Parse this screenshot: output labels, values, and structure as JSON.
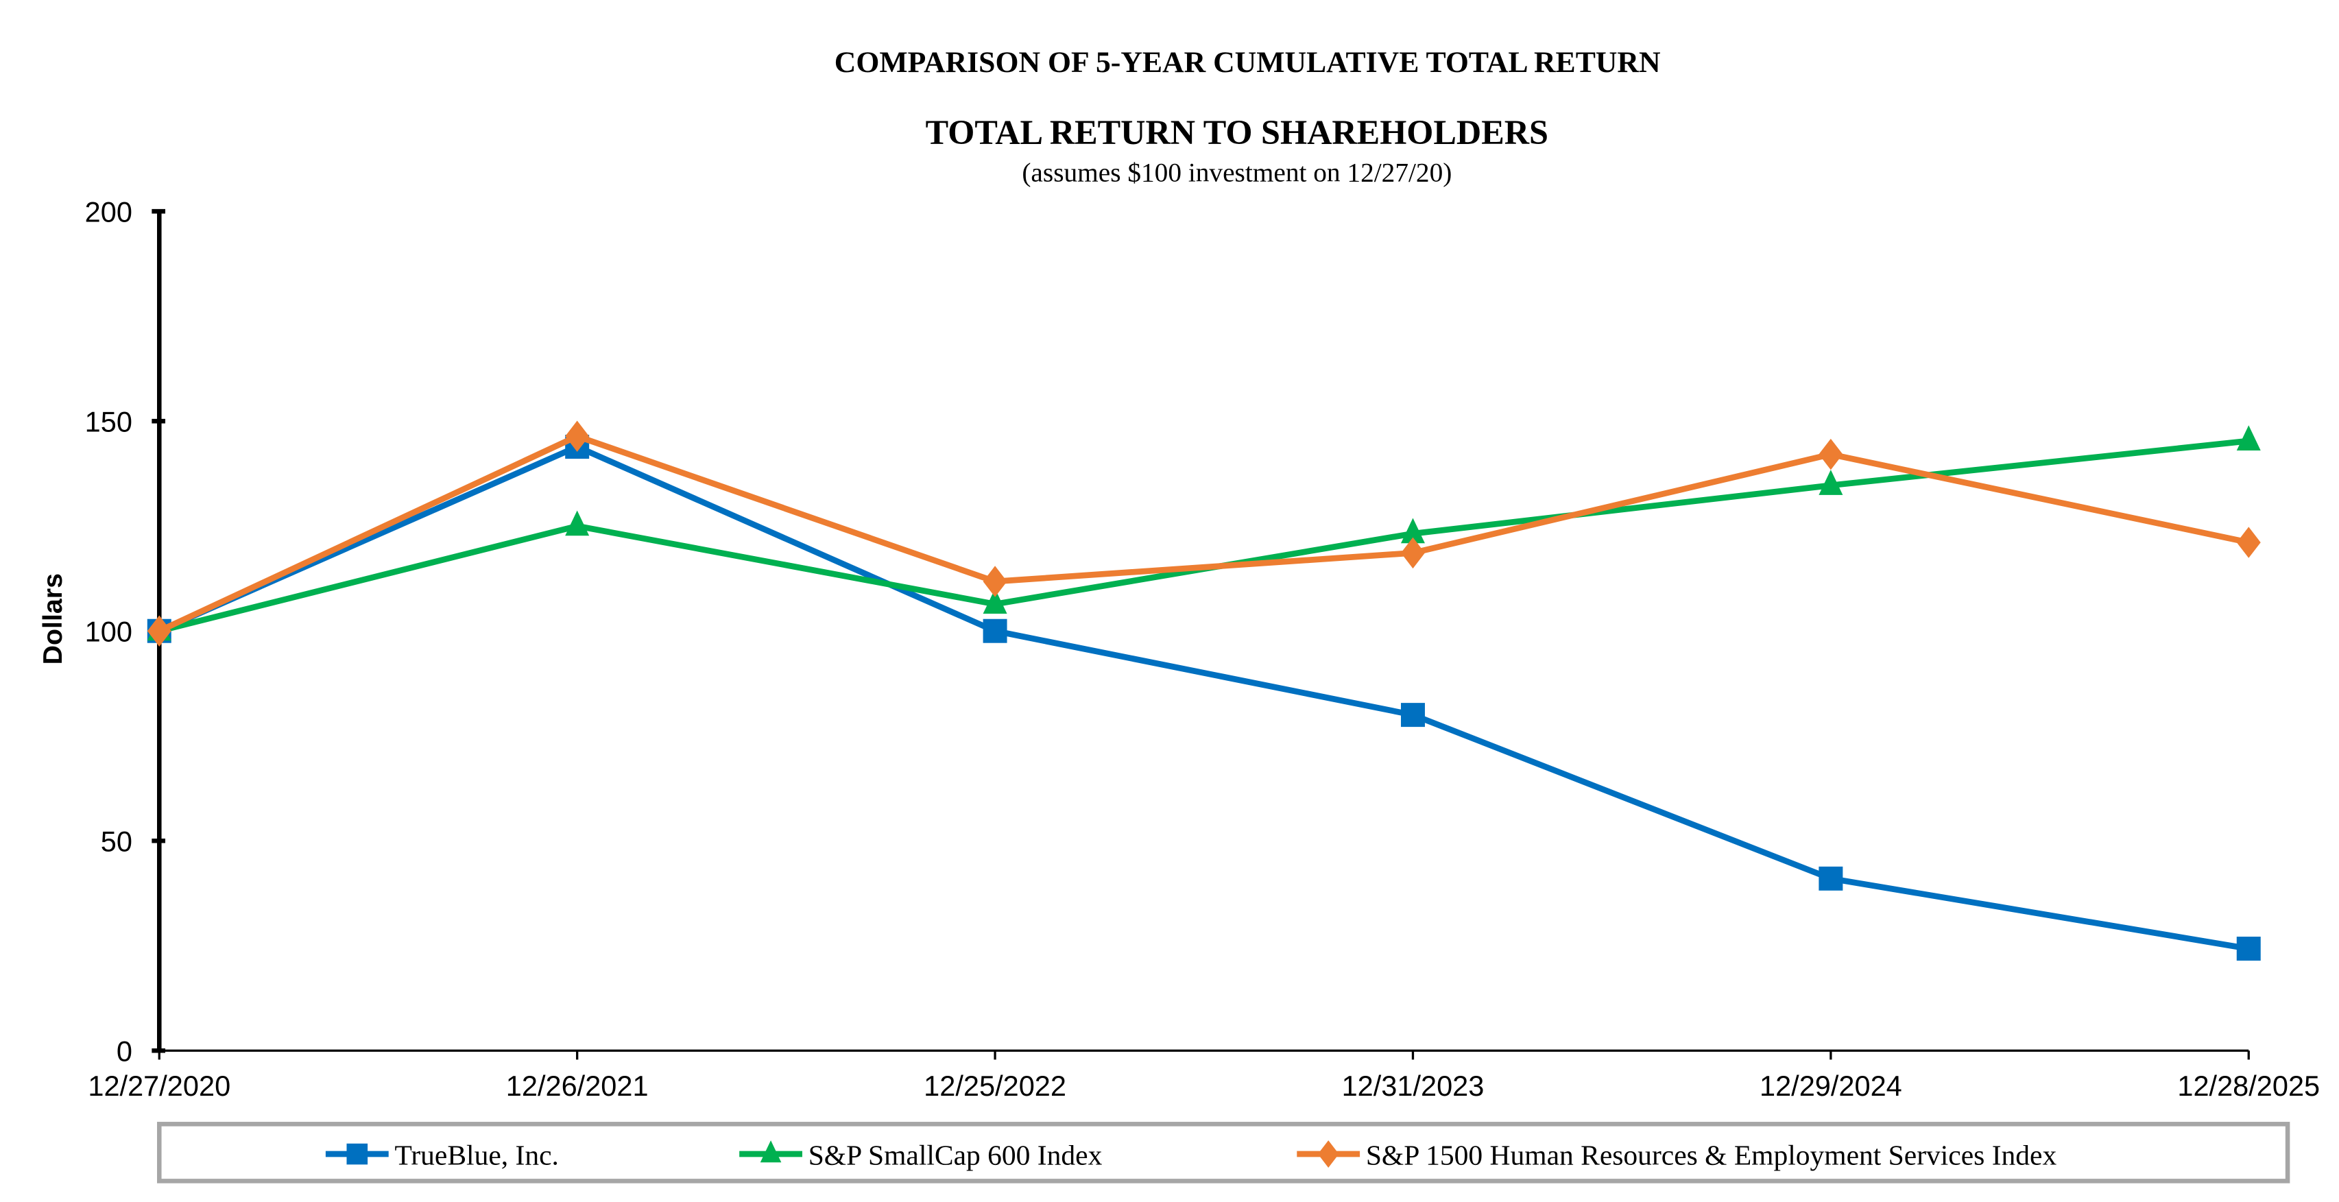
{
  "chart_data": {
    "type": "line",
    "title": "COMPARISON OF 5-YEAR CUMULATIVE TOTAL RETURN",
    "subtitle": "TOTAL RETURN TO SHAREHOLDERS",
    "note": "(assumes $100 investment on 12/27/20)",
    "xlabel": "",
    "ylabel": "Dollars",
    "categories": [
      "12/27/2020",
      "12/26/2021",
      "12/25/2022",
      "12/31/2023",
      "12/29/2024",
      "12/28/2025"
    ],
    "yticks": [
      "0",
      "50",
      "100",
      "150",
      "200"
    ],
    "ylim": [
      0,
      200
    ],
    "grid": false,
    "legend_position": "bottom",
    "series": [
      {
        "name": "TrueBlue, Inc.",
        "color": "#0070C0",
        "marker": "square",
        "values": [
          100,
          143.9,
          100,
          80,
          41,
          24.3
        ]
      },
      {
        "name": "S&P SmallCap 600 Index",
        "color": "#00B050",
        "marker": "triangle",
        "values": [
          100,
          125,
          106.4,
          123.2,
          134.7,
          145.3
        ]
      },
      {
        "name": "S&P 1500 Human Resources & Employment Services Index",
        "color": "#ED7D31",
        "marker": "diamond",
        "values": [
          100,
          146.4,
          111.8,
          118.6,
          142.1,
          121.1
        ]
      }
    ]
  }
}
